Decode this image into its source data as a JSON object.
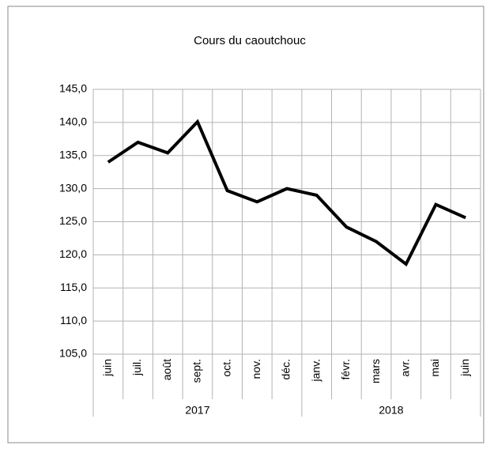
{
  "chart_data": {
    "type": "line",
    "title": "Cours du caoutchouc",
    "groups": [
      {
        "label": "2017",
        "categories": [
          "juin",
          "juil.",
          "août",
          "sept.",
          "oct.",
          "nov.",
          "déc."
        ]
      },
      {
        "label": "2018",
        "categories": [
          "janv.",
          "févr.",
          "mars",
          "avr.",
          "mai",
          "juin"
        ]
      }
    ],
    "series": [
      {
        "color": "#000000",
        "values": [
          134.0,
          137.0,
          135.4,
          140.1,
          129.7,
          128.0,
          130.0,
          129.0,
          124.2,
          122.0,
          118.6,
          127.6,
          125.6
        ]
      }
    ],
    "ylim": [
      105,
      145
    ],
    "yticks": [
      {
        "value": 105,
        "label": "105,0"
      },
      {
        "value": 110,
        "label": "110,0"
      },
      {
        "value": 115,
        "label": "115,0"
      },
      {
        "value": 120,
        "label": "120,0"
      },
      {
        "value": 125,
        "label": "125,0"
      },
      {
        "value": 130,
        "label": "130,0"
      },
      {
        "value": 135,
        "label": "135,0"
      },
      {
        "value": 140,
        "label": "140,0"
      },
      {
        "value": 145,
        "label": "145,0"
      }
    ],
    "grid": true
  }
}
